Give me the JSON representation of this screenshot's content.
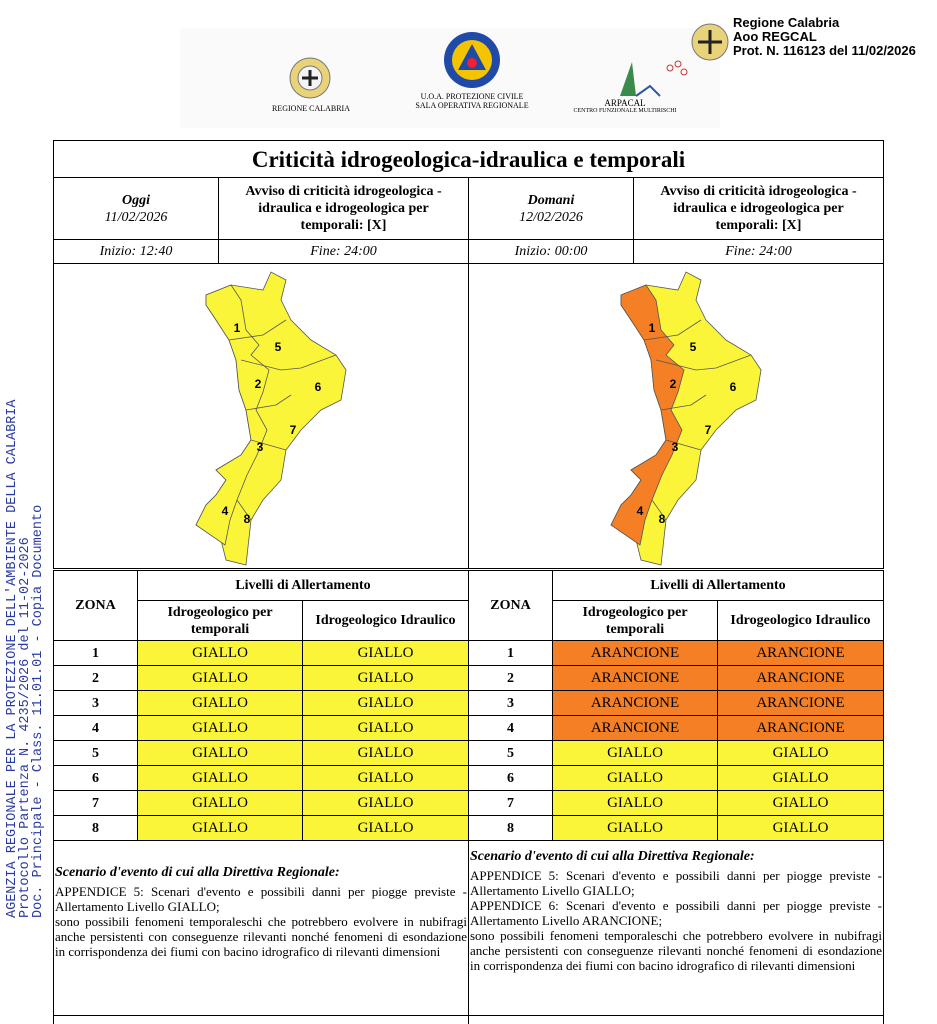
{
  "stamp": [
    "Regione Calabria",
    "Aoo REGCAL",
    "Prot. N. 116123 del 11/02/2026"
  ],
  "logos": {
    "regione": "REGIONE CALABRIA",
    "protezione": [
      "U.O.A. PROTEZIONE CIVILE",
      "SALA OPERATIVA REGIONALE"
    ],
    "arpacal": [
      "ARPACAL",
      "CENTRO FUNZIONALE MULTIRISCHI"
    ]
  },
  "side_stamp": [
    "AGENZIA REGIONALE PER LA PROTEZIONE DELL'AMBIENTE DELLA CALABRIA",
    "Protocollo Partenza N. 4235/2026 del 11-02-2026",
    "Doc. Principale - Class. 11.01.01 - Copia Documento"
  ],
  "title": "Criticità idrogeologica-idraulica e temporali",
  "level_colors": {
    "GIALLO": "#fbf53a",
    "ARANCIONE": "#f47f25"
  },
  "days": [
    {
      "day": "Oggi",
      "date": "11/02/2026",
      "notice": "Avviso di criticità idrogeologica - idraulica e idrogeologica per temporali: [X]",
      "start": "Inizio: 12:40",
      "end": "Fine: 24:00",
      "map_labels": [
        "1",
        "5",
        "2",
        "6",
        "7",
        "3",
        "4",
        "8"
      ],
      "table": {
        "zone_header": "ZONA",
        "group_header": "Livelli di Allertamento",
        "columns": [
          "Idrogeologico per temporali",
          "Idrogeologico Idraulico"
        ],
        "rows": [
          [
            "1",
            "GIALLO",
            "GIALLO"
          ],
          [
            "2",
            "GIALLO",
            "GIALLO"
          ],
          [
            "3",
            "GIALLO",
            "GIALLO"
          ],
          [
            "4",
            "GIALLO",
            "GIALLO"
          ],
          [
            "5",
            "GIALLO",
            "GIALLO"
          ],
          [
            "6",
            "GIALLO",
            "GIALLO"
          ],
          [
            "7",
            "GIALLO",
            "GIALLO"
          ],
          [
            "8",
            "GIALLO",
            "GIALLO"
          ]
        ]
      },
      "scenario": {
        "title": "Scenario d'evento di cui alla Direttiva Regionale:",
        "paragraphs": [
          "APPENDICE 5: Scenari d'evento e possibili danni per piogge previste - Allertamento Livello GIALLO;",
          "sono possibili fenomeni temporaleschi che potrebbero evolvere in nubifragi anche persistenti con conseguenze rilevanti nonché fenomeni di esondazione in corrispondenza dei fiumi con bacino idrografico di rilevanti dimensioni"
        ]
      }
    },
    {
      "day": "Domani",
      "date": "12/02/2026",
      "notice": "Avviso di criticità idrogeologica - idraulica e idrogeologica per temporali: [X]",
      "start": "Inizio: 00:00",
      "end": "Fine: 24:00",
      "map_labels": [
        "1",
        "5",
        "2",
        "6",
        "7",
        "3",
        "4",
        "8"
      ],
      "table": {
        "zone_header": "ZONA",
        "group_header": "Livelli di Allertamento",
        "columns": [
          "Idrogeologico per temporali",
          "Idrogeologico Idraulico"
        ],
        "rows": [
          [
            "1",
            "ARANCIONE",
            "ARANCIONE"
          ],
          [
            "2",
            "ARANCIONE",
            "ARANCIONE"
          ],
          [
            "3",
            "ARANCIONE",
            "ARANCIONE"
          ],
          [
            "4",
            "ARANCIONE",
            "ARANCIONE"
          ],
          [
            "5",
            "GIALLO",
            "GIALLO"
          ],
          [
            "6",
            "GIALLO",
            "GIALLO"
          ],
          [
            "7",
            "GIALLO",
            "GIALLO"
          ],
          [
            "8",
            "GIALLO",
            "GIALLO"
          ]
        ]
      },
      "scenario": {
        "title": "Scenario d'evento di cui alla Direttiva Regionale:",
        "paragraphs": [
          "APPENDICE 5: Scenari d'evento e possibili danni per piogge previste - Allertamento Livello GIALLO;",
          "APPENDICE 6: Scenari d'evento e possibili danni per piogge previste - Allertamento Livello ARANCIONE;",
          "sono possibili fenomeni temporaleschi che potrebbero evolvere in nubifragi anche persistenti con conseguenze rilevanti nonché fenomeni di esondazione in corrispondenza dei fiumi con bacino idrografico di rilevanti dimensioni"
        ]
      }
    }
  ]
}
